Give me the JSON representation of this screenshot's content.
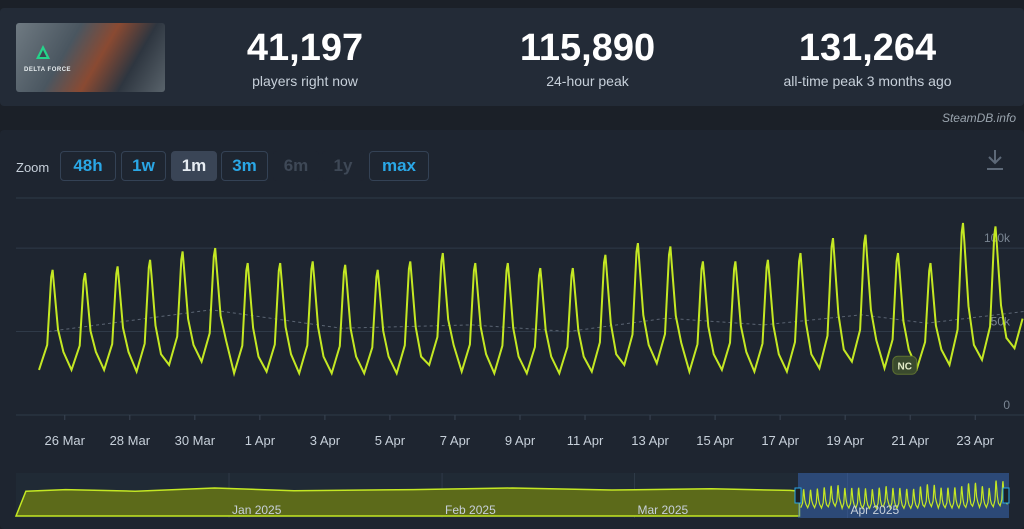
{
  "stats": [
    {
      "value": "41,197",
      "label": "players right now"
    },
    {
      "value": "115,890",
      "label": "24-hour peak"
    },
    {
      "value": "131,264",
      "label": "all-time peak 3 months ago"
    }
  ],
  "game_logo_text": "DELTA FORCE",
  "attribution": "SteamDB.info",
  "zoom": {
    "label": "Zoom",
    "buttons": [
      {
        "label": "48h",
        "state": "enabled"
      },
      {
        "label": "1w",
        "state": "enabled"
      },
      {
        "label": "1m",
        "state": "active"
      },
      {
        "label": "3m",
        "state": "enabled"
      },
      {
        "label": "6m",
        "state": "disabled"
      },
      {
        "label": "1y",
        "state": "disabled"
      },
      {
        "label": "max",
        "state": "enabled"
      }
    ]
  },
  "colors": {
    "series": "#c4e823",
    "grid": "#2f3a48",
    "accent": "#2aa7e6"
  },
  "icons": [
    "download-icon"
  ],
  "chart_data": {
    "type": "line",
    "x_range": [
      "2025-03-24T12:00",
      "2025-04-24T12:00"
    ],
    "xticks": [
      "26 Mar",
      "28 Mar",
      "30 Mar",
      "1 Apr",
      "3 Apr",
      "5 Apr",
      "7 Apr",
      "9 Apr",
      "11 Apr",
      "13 Apr",
      "15 Apr",
      "17 Apr",
      "19 Apr",
      "21 Apr",
      "23 Apr"
    ],
    "yticks": [
      "0",
      "50k",
      "100k"
    ],
    "ylim": [
      0,
      130000
    ],
    "grid": true,
    "annotation": {
      "label": "NC",
      "date": "2025-04-20"
    },
    "series": [
      {
        "values_note": "daily peaks and troughs",
        "daily_peaks": [
          {
            "date": "2025-03-25",
            "value": 87000
          },
          {
            "date": "2025-03-26",
            "value": 85000
          },
          {
            "date": "2025-03-27",
            "value": 89000
          },
          {
            "date": "2025-03-28",
            "value": 93000
          },
          {
            "date": "2025-03-29",
            "value": 98000
          },
          {
            "date": "2025-03-30",
            "value": 100000
          },
          {
            "date": "2025-03-31",
            "value": 91000
          },
          {
            "date": "2025-04-01",
            "value": 91000
          },
          {
            "date": "2025-04-02",
            "value": 92000
          },
          {
            "date": "2025-04-03",
            "value": 90000
          },
          {
            "date": "2025-04-04",
            "value": 87000
          },
          {
            "date": "2025-04-05",
            "value": 92000
          },
          {
            "date": "2025-04-06",
            "value": 97000
          },
          {
            "date": "2025-04-07",
            "value": 91000
          },
          {
            "date": "2025-04-08",
            "value": 91000
          },
          {
            "date": "2025-04-09",
            "value": 88000
          },
          {
            "date": "2025-04-10",
            "value": 88000
          },
          {
            "date": "2025-04-11",
            "value": 96000
          },
          {
            "date": "2025-04-12",
            "value": 103000
          },
          {
            "date": "2025-04-13",
            "value": 101000
          },
          {
            "date": "2025-04-14",
            "value": 92000
          },
          {
            "date": "2025-04-15",
            "value": 92000
          },
          {
            "date": "2025-04-16",
            "value": 93000
          },
          {
            "date": "2025-04-17",
            "value": 97000
          },
          {
            "date": "2025-04-18",
            "value": 106000
          },
          {
            "date": "2025-04-19",
            "value": 108000
          },
          {
            "date": "2025-04-20",
            "value": 97000
          },
          {
            "date": "2025-04-21",
            "value": 91000
          },
          {
            "date": "2025-04-22",
            "value": 115000
          },
          {
            "date": "2025-04-23",
            "value": 113000
          },
          {
            "date": "2025-04-24",
            "value": 111000
          }
        ],
        "daily_troughs": [
          {
            "date": "2025-03-25",
            "value": 27000
          },
          {
            "date": "2025-03-26",
            "value": 27000
          },
          {
            "date": "2025-03-27",
            "value": 27000
          },
          {
            "date": "2025-03-28",
            "value": 26000
          },
          {
            "date": "2025-03-29",
            "value": 30000
          },
          {
            "date": "2025-03-30",
            "value": 32000
          },
          {
            "date": "2025-03-31",
            "value": 25000
          },
          {
            "date": "2025-04-01",
            "value": 26000
          },
          {
            "date": "2025-04-02",
            "value": 25000
          },
          {
            "date": "2025-04-03",
            "value": 25000
          },
          {
            "date": "2025-04-04",
            "value": 25000
          },
          {
            "date": "2025-04-05",
            "value": 25000
          },
          {
            "date": "2025-04-06",
            "value": 30000
          },
          {
            "date": "2025-04-07",
            "value": 26000
          },
          {
            "date": "2025-04-08",
            "value": 25000
          },
          {
            "date": "2025-04-09",
            "value": 25000
          },
          {
            "date": "2025-04-10",
            "value": 25000
          },
          {
            "date": "2025-04-11",
            "value": 26000
          },
          {
            "date": "2025-04-12",
            "value": 30000
          },
          {
            "date": "2025-04-13",
            "value": 31000
          },
          {
            "date": "2025-04-14",
            "value": 26000
          },
          {
            "date": "2025-04-15",
            "value": 27000
          },
          {
            "date": "2025-04-16",
            "value": 26000
          },
          {
            "date": "2025-04-17",
            "value": 26000
          },
          {
            "date": "2025-04-18",
            "value": 28000
          },
          {
            "date": "2025-04-19",
            "value": 32000
          },
          {
            "date": "2025-04-20",
            "value": 28000
          },
          {
            "date": "2025-04-21",
            "value": 28000
          },
          {
            "date": "2025-04-22",
            "value": 30000
          },
          {
            "date": "2025-04-23",
            "value": 33000
          },
          {
            "date": "2025-04-24",
            "value": 40000
          }
        ],
        "moving_average": [
          {
            "date": "2025-03-25",
            "value": 50000
          },
          {
            "date": "2025-03-30",
            "value": 63000
          },
          {
            "date": "2025-04-03",
            "value": 52000
          },
          {
            "date": "2025-04-07",
            "value": 54000
          },
          {
            "date": "2025-04-10",
            "value": 50000
          },
          {
            "date": "2025-04-13",
            "value": 58000
          },
          {
            "date": "2025-04-16",
            "value": 54000
          },
          {
            "date": "2025-04-19",
            "value": 60000
          },
          {
            "date": "2025-04-21",
            "value": 55000
          },
          {
            "date": "2025-04-24",
            "value": 62000
          }
        ]
      }
    ],
    "navigator": {
      "labels": [
        "Jan 2025",
        "Feb 2025",
        "Mar 2025",
        "Apr 2025"
      ],
      "selected_range": [
        "2025-03-24",
        "2025-04-24"
      ]
    }
  }
}
